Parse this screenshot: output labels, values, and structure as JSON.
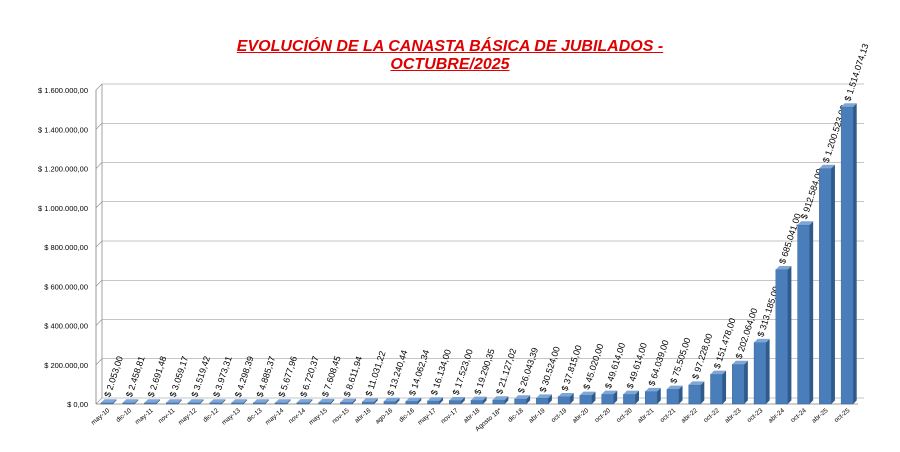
{
  "chart_data": {
    "type": "bar",
    "title_line1": "EVOLUCIÓN DE LA CANASTA BÁSICA DE JUBILADOS -",
    "title_line2": "OCTUBRE/2025",
    "ylim": [
      0,
      1600000
    ],
    "yticks": [
      "$ 0,00",
      "$ 200.000,00",
      "$ 400.000,00",
      "$ 600.000,00",
      "$ 800.000,00",
      "$ 1.000.000,00",
      "$ 1.200.000,00",
      "$ 1.400.000,00",
      "$ 1.600.000,00"
    ],
    "grid": true,
    "bar_color": "#4a7ebb",
    "title_color": "#e00000",
    "categories": [
      "may-10",
      "dic-10",
      "may-11",
      "nov-11",
      "may-12",
      "dic-12",
      "may-13",
      "dic-13",
      "may-14",
      "nov-14",
      "may-15",
      "nov-15",
      "abr-16",
      "ago-16",
      "dic-16",
      "may-17",
      "nov-17",
      "abr-18",
      "Agosto 18*",
      "dic-18",
      "abr-19",
      "oct-19",
      "abr-20",
      "oct-20",
      "oct-20",
      "abr-21",
      "oct-21",
      "abr-22",
      "oct-22",
      "abr-23",
      "oct-23",
      "abr-24",
      "oct-24",
      "abr-25",
      "oct-25"
    ],
    "values": [
      2053.0,
      2458.81,
      2691.48,
      3059.17,
      3519.42,
      3973.31,
      4298.39,
      4885.37,
      5677.96,
      6720.37,
      7608.45,
      8611.94,
      11031.22,
      13240.44,
      14062.34,
      16134.0,
      17523.0,
      19290.35,
      21127.02,
      26043.39,
      30524.0,
      37815.0,
      45020.0,
      49614.0,
      49614.0,
      64039.0,
      75505.0,
      97228.0,
      151478.0,
      202064.0,
      313185.0,
      685041.0,
      912584.0,
      1200523.0,
      1514074.13
    ],
    "value_labels": [
      "$ 2.053,00",
      "$ 2.458,81",
      "$ 2.691,48",
      "$ 3.059,17",
      "$ 3.519,42",
      "$ 3.973,31",
      "$ 4.298,39",
      "$ 4.885,37",
      "$ 5.677,96",
      "$ 6.720,37",
      "$ 7.608,45",
      "$ 8.611,94",
      "$ 11.031,22",
      "$ 13.240,44",
      "$ 14.062,34",
      "$ 16.134,00",
      "$ 17.523,00",
      "$ 19.290,35",
      "$ 21.127,02",
      "$ 26.043,39",
      "$ 30.524,00",
      "$ 37.815,00",
      "$ 45.020,00",
      "$ 49.614,00",
      "$ 49.614,00",
      "$ 64.039,00",
      "$ 75.505,00",
      "$ 97.228,00",
      "$ 151.478,00",
      "$ 202.064,00",
      "$ 313.185,00",
      "$ 685.041,00",
      "$ 912.584,00",
      "$ 1.200.523,00",
      "$ 1.514.074,13"
    ]
  }
}
